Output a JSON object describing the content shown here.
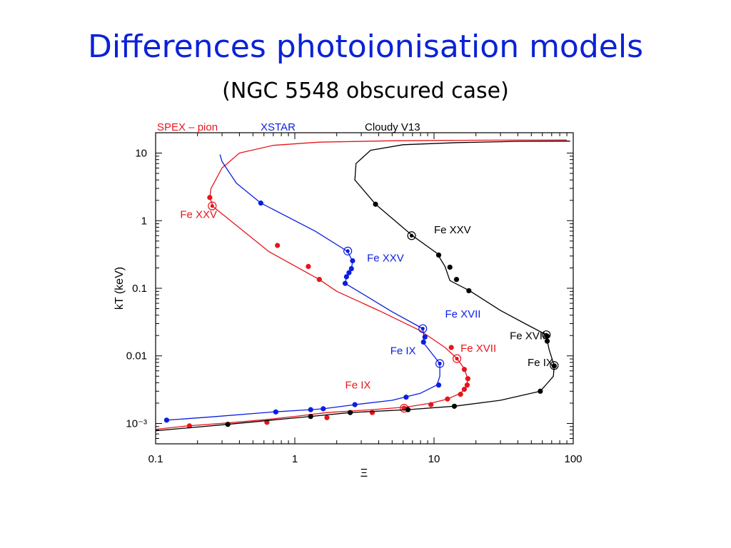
{
  "slide": {
    "title": "Differences photoionisation models",
    "subtitle": "(NGC 5548 obscured case)"
  },
  "chart_data": {
    "type": "line",
    "title": "",
    "xlabel": "Ξ",
    "ylabel": "kT (keV)",
    "xscale": "log",
    "yscale": "log",
    "xlim": [
      0.1,
      100
    ],
    "ylim": [
      0.0005,
      20
    ],
    "xticks": [
      {
        "v": 0.1,
        "label": "0.1"
      },
      {
        "v": 1,
        "label": "1"
      },
      {
        "v": 10,
        "label": "10"
      },
      {
        "v": 100,
        "label": "100"
      }
    ],
    "yticks": [
      {
        "v": 10,
        "label": "10"
      },
      {
        "v": 1,
        "label": "1"
      },
      {
        "v": 0.1,
        "label": "0.1"
      },
      {
        "v": 0.01,
        "label": "0.01"
      },
      {
        "v": 0.001,
        "label": "10⁻³"
      }
    ],
    "legend_position": "top",
    "series": [
      {
        "name": "SPEX – pion",
        "color": "#e8141b",
        "curve": [
          [
            0.1,
            0.00082
          ],
          [
            0.17,
            0.00092
          ],
          [
            0.35,
            0.00103
          ],
          [
            0.65,
            0.00115
          ],
          [
            1.0,
            0.00127
          ],
          [
            1.7,
            0.00145
          ],
          [
            3.6,
            0.0016
          ],
          [
            6.3,
            0.00175
          ],
          [
            9.5,
            0.002
          ],
          [
            12.5,
            0.0023
          ],
          [
            15.5,
            0.0028
          ],
          [
            17.0,
            0.0034
          ],
          [
            17.5,
            0.0045
          ],
          [
            16.5,
            0.0065
          ],
          [
            14.5,
            0.0093
          ],
          [
            12.0,
            0.0133
          ],
          [
            8.0,
            0.0235
          ],
          [
            4.0,
            0.047
          ],
          [
            2.0,
            0.09
          ],
          [
            1.5,
            0.135
          ],
          [
            0.65,
            0.35
          ],
          [
            0.26,
            1.6
          ],
          [
            0.245,
            2.2
          ],
          [
            0.25,
            3.0
          ],
          [
            0.3,
            6.0
          ],
          [
            0.4,
            10.0
          ],
          [
            0.7,
            13.0
          ],
          [
            1.5,
            14.5
          ],
          [
            5,
            15.2
          ],
          [
            20,
            15.5
          ],
          [
            90,
            15.6
          ]
        ],
        "markers": [
          [
            0.175,
            0.00092
          ],
          [
            0.63,
            0.00104
          ],
          [
            1.7,
            0.00122
          ],
          [
            3.6,
            0.00145
          ],
          [
            6.1,
            0.00168
          ],
          [
            9.5,
            0.0019
          ],
          [
            12.5,
            0.0023
          ],
          [
            15.5,
            0.0027
          ],
          [
            16.5,
            0.0032
          ],
          [
            17.3,
            0.0037
          ],
          [
            17.5,
            0.0046
          ],
          [
            16.5,
            0.0063
          ],
          [
            13.3,
            0.0133
          ],
          [
            1.5,
            0.135
          ],
          [
            1.25,
            0.21
          ],
          [
            0.75,
            0.43
          ],
          [
            0.245,
            2.2
          ]
        ],
        "circled": [
          [
            6.1,
            0.00168
          ],
          [
            14.6,
            0.0091
          ],
          [
            0.255,
            1.65
          ]
        ],
        "labels": [
          {
            "text": "Fe XXV",
            "x": 0.15,
            "y": 1.1
          },
          {
            "text": "Fe XVII",
            "x": 15.5,
            "y": 0.0115
          },
          {
            "text": "Fe IX",
            "x": 2.3,
            "y": 0.0033
          }
        ]
      },
      {
        "name": "XSTAR",
        "color": "#0a1ee0",
        "curve": [
          [
            0.12,
            0.00112
          ],
          [
            0.25,
            0.00125
          ],
          [
            0.7,
            0.00148
          ],
          [
            1.3,
            0.0016
          ],
          [
            1.6,
            0.00165
          ],
          [
            2.7,
            0.0019
          ],
          [
            5.0,
            0.0022
          ],
          [
            8.0,
            0.0028
          ],
          [
            10.5,
            0.0037
          ],
          [
            11.0,
            0.005
          ],
          [
            11.0,
            0.0077
          ],
          [
            9.0,
            0.013
          ],
          [
            8.3,
            0.016
          ],
          [
            8.5,
            0.0185
          ],
          [
            8.3,
            0.0253
          ],
          [
            5.0,
            0.045
          ],
          [
            3.0,
            0.085
          ],
          [
            2.3,
            0.118
          ],
          [
            2.35,
            0.148
          ],
          [
            2.45,
            0.17
          ],
          [
            2.55,
            0.195
          ],
          [
            2.6,
            0.25
          ],
          [
            2.4,
            0.35
          ],
          [
            1.4,
            0.7
          ],
          [
            0.57,
            1.82
          ],
          [
            0.38,
            3.6
          ],
          [
            0.3,
            7.5
          ],
          [
            0.29,
            9.5
          ]
        ],
        "markers": [
          [
            0.12,
            0.00112
          ],
          [
            0.73,
            0.00148
          ],
          [
            1.3,
            0.0016
          ],
          [
            1.6,
            0.00165
          ],
          [
            2.7,
            0.0019
          ],
          [
            6.3,
            0.00245
          ],
          [
            10.8,
            0.0037
          ],
          [
            8.4,
            0.016
          ],
          [
            8.6,
            0.019
          ],
          [
            2.3,
            0.118
          ],
          [
            2.35,
            0.148
          ],
          [
            2.45,
            0.17
          ],
          [
            2.55,
            0.195
          ],
          [
            2.6,
            0.255
          ],
          [
            0.57,
            1.82
          ]
        ],
        "circled": [
          [
            2.4,
            0.355
          ],
          [
            8.3,
            0.0253
          ],
          [
            11.0,
            0.0077
          ]
        ],
        "labels": [
          {
            "text": "Fe XXV",
            "x": 3.3,
            "y": 0.25
          },
          {
            "text": "Fe XVII",
            "x": 12.0,
            "y": 0.037
          },
          {
            "text": "Fe IX",
            "x": 4.85,
            "y": 0.0105
          }
        ]
      },
      {
        "name": "Cloudy V13",
        "color": "#000000",
        "curve": [
          [
            0.1,
            0.00078
          ],
          [
            0.33,
            0.00097
          ],
          [
            1.3,
            0.00127
          ],
          [
            2.5,
            0.00145
          ],
          [
            6.5,
            0.0016
          ],
          [
            14,
            0.0018
          ],
          [
            30,
            0.0022
          ],
          [
            58,
            0.003
          ],
          [
            72,
            0.005
          ],
          [
            73,
            0.0072
          ],
          [
            67,
            0.0125
          ],
          [
            65,
            0.017
          ],
          [
            64,
            0.0205
          ],
          [
            45,
            0.03
          ],
          [
            30,
            0.047
          ],
          [
            18,
            0.092
          ],
          [
            13,
            0.13
          ],
          [
            12,
            0.21
          ],
          [
            10.5,
            0.33
          ],
          [
            7,
            0.6
          ],
          [
            3.8,
            1.75
          ],
          [
            2.7,
            4.0
          ],
          [
            2.75,
            7.0
          ],
          [
            3.5,
            11.0
          ],
          [
            6,
            13.3
          ],
          [
            15,
            14.3
          ],
          [
            40,
            14.9
          ],
          [
            95,
            15.0
          ]
        ],
        "markers": [
          [
            0.33,
            0.00097
          ],
          [
            1.3,
            0.00127
          ],
          [
            2.5,
            0.00145
          ],
          [
            6.5,
            0.0016
          ],
          [
            14,
            0.0018
          ],
          [
            58,
            0.003
          ],
          [
            73,
            0.0071
          ],
          [
            65,
            0.0165
          ],
          [
            65,
            0.0195
          ],
          [
            17.8,
            0.092
          ],
          [
            14.5,
            0.135
          ],
          [
            13,
            0.205
          ],
          [
            10.8,
            0.31
          ],
          [
            3.8,
            1.75
          ]
        ],
        "circled": [
          [
            6.9,
            0.6
          ],
          [
            64,
            0.0205
          ],
          [
            73,
            0.0072
          ]
        ],
        "labels": [
          {
            "text": "Fe XXV",
            "x": 10,
            "y": 0.65
          },
          {
            "text": "Fe XVII",
            "x": 35,
            "y": 0.0175
          },
          {
            "text": "Fe IX",
            "x": 47,
            "y": 0.0071
          }
        ]
      }
    ]
  }
}
